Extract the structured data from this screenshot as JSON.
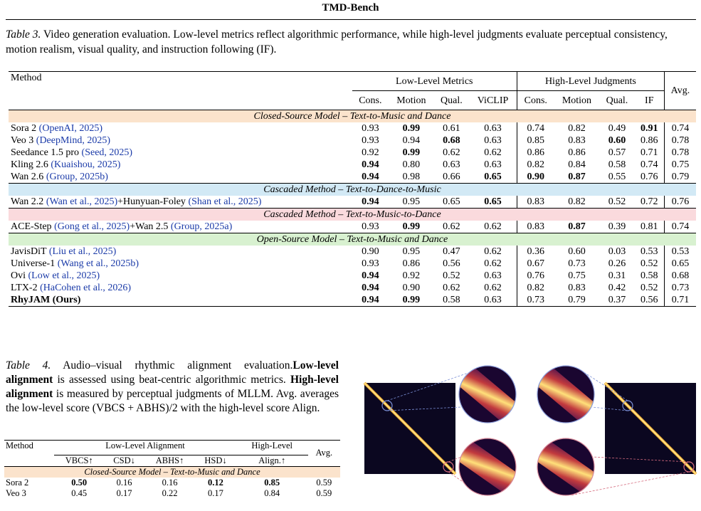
{
  "header": "TMD-Bench",
  "table3": {
    "label": "Table 3.",
    "caption": "Video generation evaluation. Low-level metrics reflect algorithmic performance, while high-level judgments evaluate perceptual consistency, motion realism, visual quality, and instruction following (IF).",
    "method_header": "Method",
    "low_group": "Low-Level Metrics",
    "high_group": "High-Level Judgments",
    "avg_header": "Avg.",
    "low_cols": [
      "Cons.",
      "Motion",
      "Qual.",
      "ViCLIP"
    ],
    "high_cols": [
      "Cons.",
      "Motion",
      "Qual.",
      "IF"
    ],
    "sections": [
      {
        "title": "Closed-Source Model – Text-to-Music and Dance",
        "color": "#fbe3cc",
        "rows": [
          {
            "name": "Sora 2 ",
            "cite": "(OpenAI, 2025)",
            "vals": [
              "0.93",
              "0.99",
              "0.61",
              "0.63",
              "0.74",
              "0.82",
              "0.49",
              "0.91",
              "0.74"
            ],
            "bold": [
              1,
              7
            ]
          },
          {
            "name": "Veo 3 ",
            "cite": "(DeepMind, 2025)",
            "vals": [
              "0.93",
              "0.94",
              "0.68",
              "0.63",
              "0.85",
              "0.83",
              "0.60",
              "0.86",
              "0.78"
            ],
            "bold": [
              2,
              6
            ]
          },
          {
            "name": "Seedance 1.5 pro ",
            "cite": "(Seed, 2025)",
            "vals": [
              "0.92",
              "0.99",
              "0.62",
              "0.62",
              "0.86",
              "0.86",
              "0.57",
              "0.71",
              "0.78"
            ],
            "bold": [
              1
            ]
          },
          {
            "name": "Kling 2.6 ",
            "cite": "(Kuaishou, 2025)",
            "vals": [
              "0.94",
              "0.80",
              "0.63",
              "0.63",
              "0.82",
              "0.84",
              "0.58",
              "0.74",
              "0.75"
            ],
            "bold": [
              0
            ]
          },
          {
            "name": "Wan 2.6 ",
            "cite": "(Group, 2025b)",
            "vals": [
              "0.94",
              "0.98",
              "0.66",
              "0.65",
              "0.90",
              "0.87",
              "0.55",
              "0.76",
              "0.79"
            ],
            "bold": [
              0,
              3,
              4,
              5
            ]
          }
        ]
      },
      {
        "title": "Cascaded Method – Text-to-Dance-to-Music",
        "color": "#d2e9f5",
        "rows": [
          {
            "name": "Wan 2.2 ",
            "cite": "(Wan et al., 2025)",
            "name2": "+Hunyuan-Foley ",
            "cite2": "(Shan et al., 2025)",
            "vals": [
              "0.94",
              "0.95",
              "0.65",
              "0.65",
              "0.83",
              "0.82",
              "0.52",
              "0.72",
              "0.76"
            ],
            "bold": [
              0,
              3
            ]
          }
        ]
      },
      {
        "title": "Cascaded Method – Text-to-Music-to-Dance",
        "color": "#fadadd",
        "rows": [
          {
            "name": "ACE-Step ",
            "cite": "(Gong et al., 2025)",
            "name2": "+Wan 2.5 ",
            "cite2": "(Group, 2025a)",
            "vals": [
              "0.93",
              "0.99",
              "0.62",
              "0.62",
              "0.83",
              "0.87",
              "0.39",
              "0.81",
              "0.74"
            ],
            "bold": [
              1,
              5
            ]
          }
        ]
      },
      {
        "title": "Open-Source Model – Text-to-Music and Dance",
        "color": "#d8f1d0",
        "rows": [
          {
            "name": "JavisDiT ",
            "cite": "(Liu et al., 2025)",
            "vals": [
              "0.90",
              "0.95",
              "0.47",
              "0.62",
              "0.36",
              "0.60",
              "0.03",
              "0.53",
              "0.53"
            ],
            "bold": []
          },
          {
            "name": "Universe-1 ",
            "cite": "(Wang et al., 2025b)",
            "vals": [
              "0.93",
              "0.86",
              "0.56",
              "0.62",
              "0.67",
              "0.73",
              "0.26",
              "0.52",
              "0.65"
            ],
            "bold": []
          },
          {
            "name": "Ovi ",
            "cite": "(Low et al., 2025)",
            "vals": [
              "0.94",
              "0.92",
              "0.52",
              "0.63",
              "0.76",
              "0.75",
              "0.31",
              "0.58",
              "0.68"
            ],
            "bold": [
              0
            ]
          },
          {
            "name": "LTX-2 ",
            "cite": "(HaCohen et al., 2026)",
            "vals": [
              "0.94",
              "0.90",
              "0.62",
              "0.62",
              "0.82",
              "0.83",
              "0.42",
              "0.52",
              "0.73"
            ],
            "bold": [
              0
            ]
          },
          {
            "name": "RhyJAM (Ours)",
            "cite": "",
            "vals": [
              "0.94",
              "0.99",
              "0.58",
              "0.63",
              "0.73",
              "0.79",
              "0.37",
              "0.56",
              "0.71"
            ],
            "bold": [
              0,
              1
            ],
            "name_bold": true
          }
        ]
      }
    ]
  },
  "table4": {
    "label": "Table 4.",
    "caption_parts": [
      " Audio–visual rhythmic alignment evaluation.",
      "Low-level alignment",
      " is assessed using beat-centric algorithmic metrics. ",
      "High-level alignment",
      " is measured by perceptual judgments of MLLM. Avg. averages the low-level score (VBCS + ABHS)/2 with the high-level score Align."
    ],
    "method_header": "Method",
    "low_group": "Low-Level Alignment",
    "high_group": "High-Level",
    "avg_header": "Avg.",
    "cols": [
      "VBCS↑",
      "CSD↓",
      "ABHS↑",
      "HSD↓",
      "Align.↑"
    ],
    "section": "Closed-Source Model – Text-to-Music and Dance",
    "rows": [
      {
        "name": "Sora 2",
        "vals": [
          "0.50",
          "0.16",
          "0.16",
          "0.12",
          "0.85",
          "0.59"
        ],
        "bold": [
          0,
          3,
          4
        ]
      },
      {
        "name": "Veo 3",
        "vals": [
          "0.45",
          "0.17",
          "0.22",
          "0.17",
          "0.84",
          "0.59"
        ],
        "bold": []
      }
    ]
  }
}
